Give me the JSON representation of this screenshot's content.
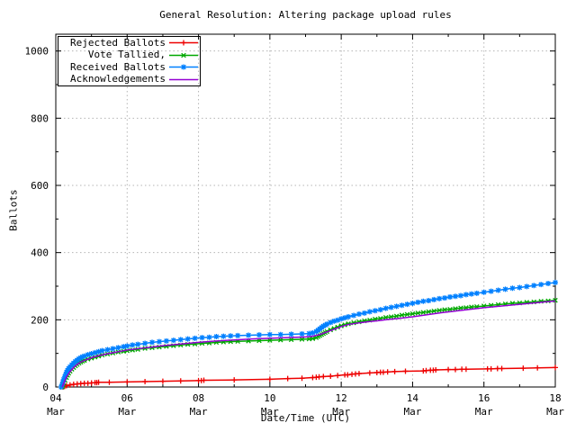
{
  "chart_data": {
    "type": "line",
    "title": "General Resolution: Altering package upload rules",
    "xlabel": "Date/Time (UTC)",
    "ylabel": "Ballots",
    "xlim": [
      4,
      18
    ],
    "ylim": [
      0,
      1050
    ],
    "x_major_ticks": [
      4,
      6,
      8,
      10,
      12,
      14,
      16,
      18
    ],
    "x_minor_ticks": [
      5,
      7,
      9,
      11,
      13,
      15,
      17
    ],
    "x_tick_labels": [
      [
        "04",
        "Mar"
      ],
      [
        "06",
        "Mar"
      ],
      [
        "08",
        "Mar"
      ],
      [
        "10",
        "Mar"
      ],
      [
        "12",
        "Mar"
      ],
      [
        "14",
        "Mar"
      ],
      [
        "16",
        "Mar"
      ],
      [
        "18",
        "Mar"
      ]
    ],
    "y_major_ticks": [
      0,
      200,
      400,
      600,
      800,
      1000
    ],
    "y_minor_ticks": [
      100,
      300,
      500,
      700,
      900
    ],
    "grid": true,
    "grid_color": "#b4b4b4",
    "border_color": "#000000",
    "background_color": "#ffffff",
    "legend_position": "top-left-boxed",
    "series": [
      {
        "name": "Rejected Ballots",
        "color": "#ee0000",
        "marker": "plus",
        "points": [
          [
            4.2,
            0
          ],
          [
            4.25,
            2
          ],
          [
            4.3,
            4
          ],
          [
            4.4,
            6
          ],
          [
            4.5,
            8
          ],
          [
            4.6,
            9
          ],
          [
            4.7,
            10
          ],
          [
            4.8,
            11
          ],
          [
            4.9,
            11
          ],
          [
            5.0,
            12
          ],
          [
            5.1,
            13
          ],
          [
            5.15,
            13
          ],
          [
            5.2,
            14
          ],
          [
            5.5,
            14
          ],
          [
            6.0,
            15
          ],
          [
            6.5,
            16
          ],
          [
            7.0,
            17
          ],
          [
            7.5,
            18
          ],
          [
            8.0,
            19
          ],
          [
            8.08,
            19
          ],
          [
            8.15,
            20
          ],
          [
            9.0,
            21
          ],
          [
            10.0,
            23
          ],
          [
            10.5,
            25
          ],
          [
            10.9,
            26
          ],
          [
            11.2,
            28
          ],
          [
            11.3,
            29
          ],
          [
            11.38,
            30
          ],
          [
            11.5,
            31
          ],
          [
            11.7,
            32
          ],
          [
            11.9,
            34
          ],
          [
            12.1,
            36
          ],
          [
            12.18,
            36
          ],
          [
            12.3,
            38
          ],
          [
            12.4,
            39
          ],
          [
            12.5,
            40
          ],
          [
            12.8,
            42
          ],
          [
            13.0,
            43
          ],
          [
            13.1,
            44
          ],
          [
            13.18,
            44
          ],
          [
            13.3,
            45
          ],
          [
            13.5,
            46
          ],
          [
            13.8,
            47
          ],
          [
            14.3,
            48
          ],
          [
            14.38,
            49
          ],
          [
            14.5,
            50
          ],
          [
            14.58,
            50
          ],
          [
            14.65,
            51
          ],
          [
            15.0,
            52
          ],
          [
            15.2,
            52
          ],
          [
            15.38,
            53
          ],
          [
            15.5,
            53
          ],
          [
            16.1,
            54
          ],
          [
            16.2,
            54
          ],
          [
            16.38,
            55
          ],
          [
            16.5,
            55
          ],
          [
            17.1,
            56
          ],
          [
            17.5,
            57
          ],
          [
            18.0,
            58
          ]
        ]
      },
      {
        "name": "Vote Tallied,",
        "color": "#00a800",
        "marker": "cross",
        "points": [
          [
            4.18,
            0
          ],
          [
            4.2,
            5
          ],
          [
            4.23,
            12
          ],
          [
            4.26,
            20
          ],
          [
            4.3,
            28
          ],
          [
            4.33,
            35
          ],
          [
            4.36,
            41
          ],
          [
            4.4,
            47
          ],
          [
            4.45,
            53
          ],
          [
            4.5,
            58
          ],
          [
            4.55,
            63
          ],
          [
            4.6,
            67
          ],
          [
            4.65,
            71
          ],
          [
            4.7,
            74
          ],
          [
            4.75,
            77
          ],
          [
            4.8,
            79
          ],
          [
            4.9,
            83
          ],
          [
            5.0,
            86
          ],
          [
            5.1,
            89
          ],
          [
            5.2,
            92
          ],
          [
            5.3,
            95
          ],
          [
            5.45,
            98
          ],
          [
            5.6,
            101
          ],
          [
            5.75,
            104
          ],
          [
            5.9,
            106
          ],
          [
            6.0,
            108
          ],
          [
            6.15,
            110
          ],
          [
            6.3,
            112
          ],
          [
            6.5,
            115
          ],
          [
            6.7,
            117
          ],
          [
            6.9,
            119
          ],
          [
            7.1,
            121
          ],
          [
            7.3,
            123
          ],
          [
            7.5,
            125
          ],
          [
            7.7,
            127
          ],
          [
            7.9,
            128
          ],
          [
            8.1,
            130
          ],
          [
            8.3,
            131
          ],
          [
            8.5,
            133
          ],
          [
            8.7,
            134
          ],
          [
            8.9,
            135
          ],
          [
            9.1,
            136
          ],
          [
            9.4,
            137
          ],
          [
            9.7,
            138
          ],
          [
            10.0,
            139
          ],
          [
            10.3,
            140
          ],
          [
            10.6,
            141
          ],
          [
            10.9,
            142
          ],
          [
            11.1,
            143
          ],
          [
            11.2,
            144
          ],
          [
            11.3,
            147
          ],
          [
            11.35,
            150
          ],
          [
            11.4,
            153
          ],
          [
            11.45,
            156
          ],
          [
            11.5,
            159
          ],
          [
            11.55,
            162
          ],
          [
            11.6,
            165
          ],
          [
            11.7,
            170
          ],
          [
            11.8,
            174
          ],
          [
            11.9,
            178
          ],
          [
            12.0,
            182
          ],
          [
            12.1,
            185
          ],
          [
            12.2,
            188
          ],
          [
            12.35,
            191
          ],
          [
            12.5,
            194
          ],
          [
            12.65,
            197
          ],
          [
            12.8,
            199
          ],
          [
            12.95,
            202
          ],
          [
            13.1,
            204
          ],
          [
            13.25,
            207
          ],
          [
            13.4,
            209
          ],
          [
            13.55,
            211
          ],
          [
            13.7,
            214
          ],
          [
            13.85,
            216
          ],
          [
            14.0,
            218
          ],
          [
            14.15,
            220
          ],
          [
            14.3,
            222
          ],
          [
            14.45,
            224
          ],
          [
            14.6,
            226
          ],
          [
            14.75,
            228
          ],
          [
            14.9,
            230
          ],
          [
            15.05,
            231
          ],
          [
            15.2,
            233
          ],
          [
            15.35,
            235
          ],
          [
            15.5,
            236
          ],
          [
            15.65,
            238
          ],
          [
            15.8,
            239
          ],
          [
            16.0,
            241
          ],
          [
            16.2,
            243
          ],
          [
            16.4,
            245
          ],
          [
            16.6,
            247
          ],
          [
            16.8,
            249
          ],
          [
            17.0,
            250
          ],
          [
            17.2,
            252
          ],
          [
            17.4,
            253
          ],
          [
            17.6,
            255
          ],
          [
            17.8,
            256
          ],
          [
            18.0,
            258
          ]
        ]
      },
      {
        "name": "Received Ballots",
        "color": "#0080ff",
        "marker": "star",
        "points": [
          [
            4.15,
            0
          ],
          [
            4.18,
            8
          ],
          [
            4.2,
            15
          ],
          [
            4.22,
            22
          ],
          [
            4.25,
            30
          ],
          [
            4.28,
            38
          ],
          [
            4.3,
            44
          ],
          [
            4.33,
            50
          ],
          [
            4.36,
            55
          ],
          [
            4.4,
            60
          ],
          [
            4.45,
            66
          ],
          [
            4.5,
            71
          ],
          [
            4.55,
            76
          ],
          [
            4.6,
            80
          ],
          [
            4.65,
            84
          ],
          [
            4.7,
            87
          ],
          [
            4.75,
            90
          ],
          [
            4.8,
            92
          ],
          [
            4.9,
            96
          ],
          [
            5.0,
            99
          ],
          [
            5.1,
            102
          ],
          [
            5.2,
            105
          ],
          [
            5.3,
            108
          ],
          [
            5.45,
            111
          ],
          [
            5.6,
            114
          ],
          [
            5.75,
            117
          ],
          [
            5.9,
            120
          ],
          [
            6.0,
            122
          ],
          [
            6.15,
            125
          ],
          [
            6.3,
            127
          ],
          [
            6.5,
            130
          ],
          [
            6.7,
            133
          ],
          [
            6.9,
            135
          ],
          [
            7.1,
            137
          ],
          [
            7.3,
            139
          ],
          [
            7.5,
            141
          ],
          [
            7.7,
            143
          ],
          [
            7.9,
            145
          ],
          [
            8.1,
            147
          ],
          [
            8.3,
            148
          ],
          [
            8.5,
            150
          ],
          [
            8.7,
            151
          ],
          [
            8.9,
            152
          ],
          [
            9.1,
            153
          ],
          [
            9.4,
            154
          ],
          [
            9.7,
            155
          ],
          [
            10.0,
            156
          ],
          [
            10.3,
            156
          ],
          [
            10.6,
            157
          ],
          [
            10.9,
            158
          ],
          [
            11.1,
            159
          ],
          [
            11.2,
            161
          ],
          [
            11.3,
            165
          ],
          [
            11.35,
            169
          ],
          [
            11.4,
            173
          ],
          [
            11.45,
            177
          ],
          [
            11.5,
            181
          ],
          [
            11.55,
            184
          ],
          [
            11.6,
            187
          ],
          [
            11.7,
            192
          ],
          [
            11.8,
            196
          ],
          [
            11.9,
            199
          ],
          [
            12.0,
            203
          ],
          [
            12.1,
            206
          ],
          [
            12.2,
            209
          ],
          [
            12.35,
            213
          ],
          [
            12.5,
            217
          ],
          [
            12.65,
            220
          ],
          [
            12.8,
            224
          ],
          [
            12.95,
            227
          ],
          [
            13.1,
            230
          ],
          [
            13.25,
            234
          ],
          [
            13.4,
            237
          ],
          [
            13.55,
            240
          ],
          [
            13.7,
            243
          ],
          [
            13.85,
            246
          ],
          [
            14.0,
            249
          ],
          [
            14.15,
            252
          ],
          [
            14.3,
            255
          ],
          [
            14.45,
            257
          ],
          [
            14.6,
            260
          ],
          [
            14.75,
            263
          ],
          [
            14.9,
            265
          ],
          [
            15.05,
            268
          ],
          [
            15.2,
            270
          ],
          [
            15.35,
            272
          ],
          [
            15.5,
            275
          ],
          [
            15.65,
            277
          ],
          [
            15.8,
            279
          ],
          [
            16.0,
            282
          ],
          [
            16.2,
            285
          ],
          [
            16.4,
            288
          ],
          [
            16.6,
            291
          ],
          [
            16.8,
            294
          ],
          [
            17.0,
            296
          ],
          [
            17.2,
            299
          ],
          [
            17.4,
            302
          ],
          [
            17.6,
            305
          ],
          [
            17.8,
            308
          ],
          [
            18.0,
            311
          ]
        ]
      },
      {
        "name": "Acknowledgements",
        "color": "#9400d3",
        "marker": "none",
        "points": [
          [
            4.18,
            0
          ],
          [
            4.25,
            18
          ],
          [
            4.3,
            30
          ],
          [
            4.4,
            46
          ],
          [
            4.5,
            58
          ],
          [
            4.6,
            67
          ],
          [
            4.7,
            74
          ],
          [
            4.8,
            79
          ],
          [
            5.0,
            87
          ],
          [
            5.2,
            93
          ],
          [
            5.5,
            100
          ],
          [
            5.8,
            106
          ],
          [
            6.0,
            110
          ],
          [
            6.3,
            114
          ],
          [
            6.7,
            119
          ],
          [
            7.0,
            123
          ],
          [
            7.5,
            128
          ],
          [
            8.0,
            133
          ],
          [
            8.5,
            137
          ],
          [
            9.0,
            140
          ],
          [
            9.5,
            143
          ],
          [
            10.0,
            145
          ],
          [
            10.5,
            147
          ],
          [
            11.0,
            149
          ],
          [
            11.2,
            151
          ],
          [
            11.4,
            156
          ],
          [
            11.6,
            164
          ],
          [
            11.8,
            172
          ],
          [
            12.0,
            180
          ],
          [
            12.2,
            186
          ],
          [
            12.5,
            191
          ],
          [
            12.8,
            195
          ],
          [
            13.0,
            197
          ],
          [
            13.3,
            201
          ],
          [
            13.6,
            204
          ],
          [
            14.0,
            209
          ],
          [
            14.4,
            215
          ],
          [
            14.8,
            221
          ],
          [
            15.2,
            226
          ],
          [
            15.6,
            231
          ],
          [
            16.0,
            236
          ],
          [
            16.4,
            240
          ],
          [
            16.8,
            244
          ],
          [
            17.2,
            248
          ],
          [
            17.6,
            252
          ],
          [
            18.0,
            256
          ]
        ]
      }
    ]
  }
}
